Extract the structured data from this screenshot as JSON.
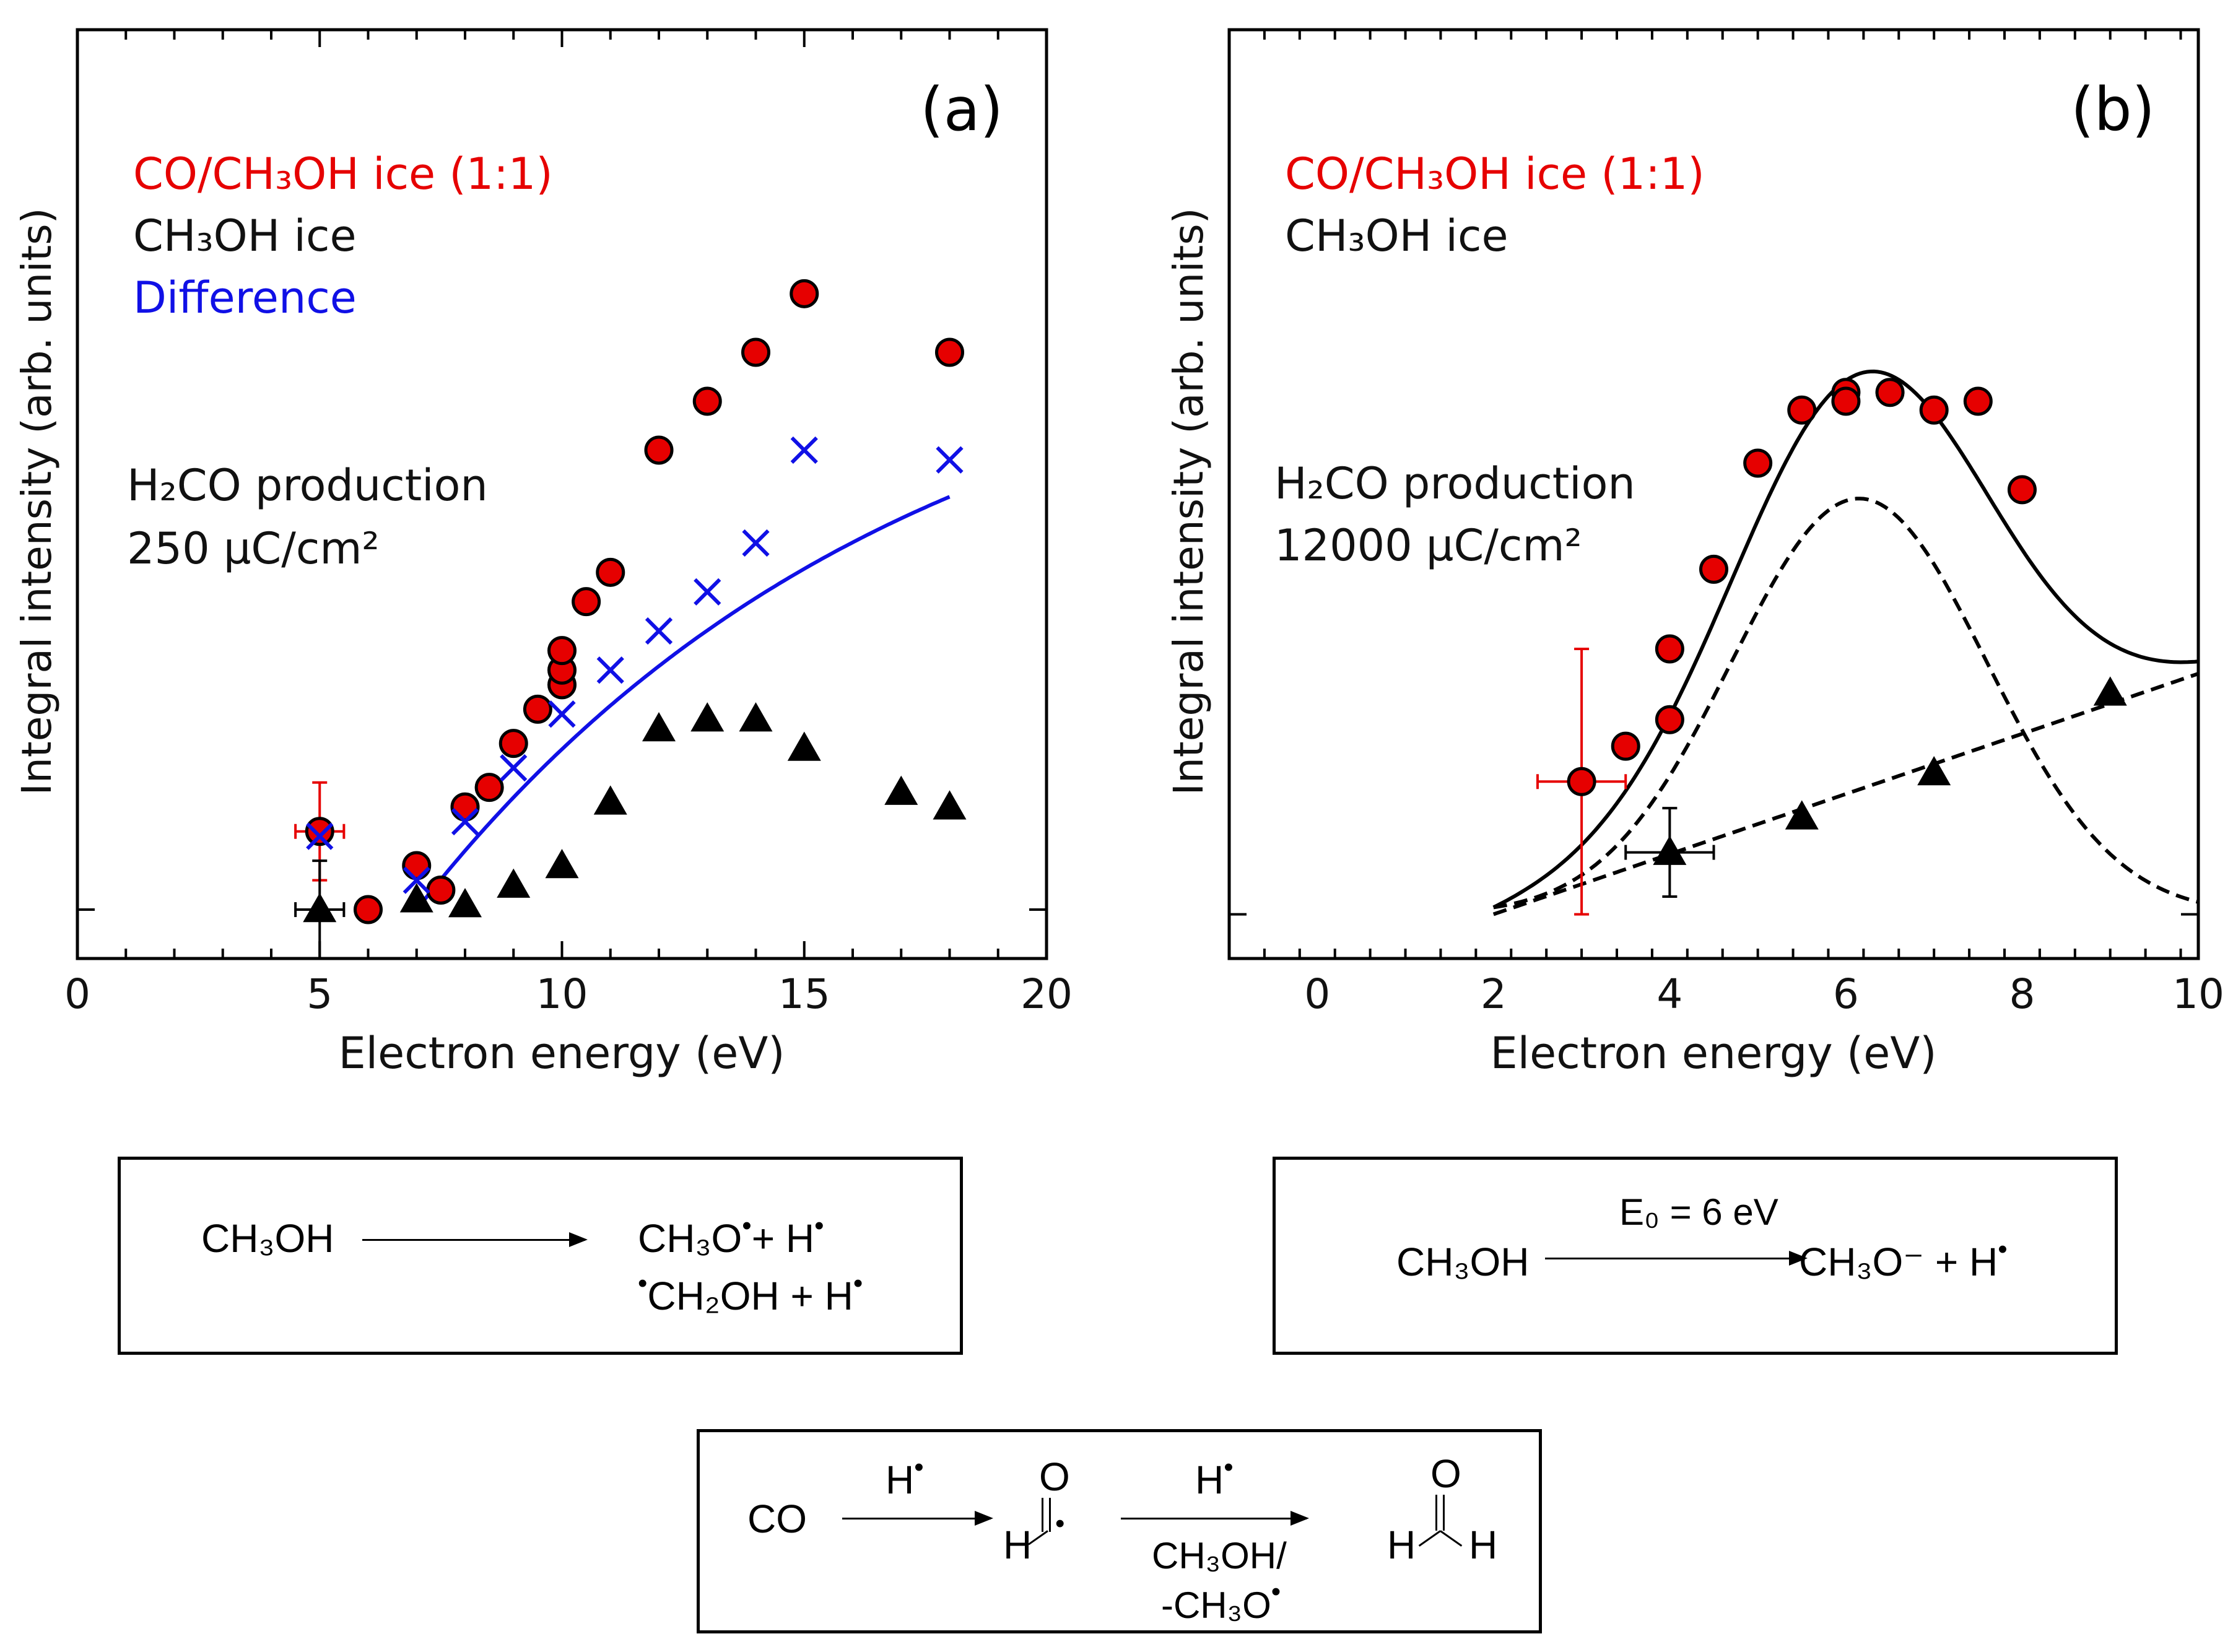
{
  "panels": [
    {
      "id": "a",
      "label": "(a)",
      "ylabel": "Integral intensity (arb. units)",
      "xlabel": "Electron energy (eV)",
      "legend": [
        {
          "text": "CO/CH₃OH ice (1:1)",
          "color": "#e60000"
        },
        {
          "text": "CH₃OH ice",
          "color": "#111111"
        },
        {
          "text": "Difference",
          "color": "#1010e6"
        }
      ],
      "annotation_line1": "H₂CO production",
      "annotation_line2": "250 µC/cm²",
      "xticks": [
        "0",
        "5",
        "10",
        "15",
        "20"
      ]
    },
    {
      "id": "b",
      "label": "(b)",
      "ylabel": "Integral intensity (arb. units)",
      "xlabel": "Electron energy (eV)",
      "legend": [
        {
          "text": "CO/CH₃OH ice (1:1)",
          "color": "#e60000"
        },
        {
          "text": "CH₃OH ice",
          "color": "#111111"
        }
      ],
      "annotation_line1": "H₂CO production",
      "annotation_line2": "12000 µC/cm²",
      "xticks": [
        "0",
        "2",
        "4",
        "6",
        "8",
        "10"
      ]
    }
  ],
  "chart_data": [
    {
      "type": "scatter",
      "title": "(a)",
      "xlabel": "Electron energy (eV)",
      "ylabel": "Integral intensity (arb. units)",
      "xlim": [
        0,
        20
      ],
      "ylim": [
        -0.1,
        1.8
      ],
      "series": [
        {
          "name": "CO/CH3OH ice (1:1)",
          "marker": "circle",
          "color": "#e60000",
          "x": [
            5,
            6,
            7,
            7.5,
            8,
            8.5,
            9,
            9.5,
            10,
            10,
            10,
            10.5,
            11,
            12,
            13,
            14,
            15,
            18
          ],
          "y": [
            0.16,
            0,
            0.09,
            0.04,
            0.21,
            0.25,
            0.34,
            0.41,
            0.46,
            0.49,
            0.53,
            0.63,
            0.69,
            0.94,
            1.04,
            1.14,
            1.26,
            1.14
          ],
          "error": {
            "index": 0,
            "xerr": 0.5,
            "yerr": 0.1
          }
        },
        {
          "name": "CH3OH ice",
          "marker": "triangle",
          "color": "#000000",
          "x": [
            5,
            7,
            8,
            9,
            10,
            11,
            12,
            13,
            14,
            15,
            17,
            18
          ],
          "y": [
            0,
            0.02,
            0.01,
            0.05,
            0.09,
            0.22,
            0.37,
            0.39,
            0.39,
            0.33,
            0.24,
            0.21
          ],
          "error": {
            "index": 0,
            "xerr": 0.5,
            "yerr": 0.1
          }
        },
        {
          "name": "Difference",
          "marker": "x",
          "color": "#1010e6",
          "x": [
            5,
            7,
            8,
            9,
            10,
            11,
            12,
            13,
            14,
            15,
            18
          ],
          "y": [
            0.15,
            0.06,
            0.18,
            0.29,
            0.4,
            0.49,
            0.57,
            0.65,
            0.75,
            0.94,
            0.92
          ]
        },
        {
          "name": "Difference fit",
          "line": "solid",
          "color": "#1010e6",
          "fn": "saturation",
          "x_range": [
            7,
            18
          ],
          "params": {
            "a": 1.266,
            "k": 0.1,
            "x0": 7
          }
        }
      ]
    },
    {
      "type": "scatter",
      "title": "(b)",
      "xlabel": "Electron energy (eV)",
      "ylabel": "Integral intensity (arb. units)",
      "xlim": [
        -1,
        10
      ],
      "ylim": [
        -0.05,
        1.0
      ],
      "series": [
        {
          "name": "CO/CH3OH ice (1:1)",
          "marker": "circle",
          "color": "#e60000",
          "x": [
            3,
            3.5,
            4,
            4,
            4.5,
            5,
            5.5,
            6,
            6,
            6.5,
            7,
            7.5,
            8
          ],
          "y": [
            0.15,
            0.19,
            0.22,
            0.3,
            0.39,
            0.51,
            0.57,
            0.59,
            0.58,
            0.59,
            0.57,
            0.58,
            0.48
          ],
          "error": {
            "index": 0,
            "xerr": 0.5,
            "yerr": 0.15
          }
        },
        {
          "name": "CH3OH ice",
          "marker": "triangle",
          "color": "#000000",
          "x": [
            4,
            5.5,
            7,
            9
          ],
          "y": [
            0.07,
            0.11,
            0.16,
            0.25
          ],
          "error": {
            "index": 0,
            "xerr": 0.5,
            "yerr": 0.05
          }
        },
        {
          "name": "Total fit",
          "line": "solid",
          "color": "#000000",
          "fn": "gauss_plus_linear",
          "x_range": [
            2,
            10
          ],
          "params": {
            "A": 0.47,
            "mu": 6.15,
            "sigma": 1.45,
            "m": 0.034,
            "b": -0.068
          }
        },
        {
          "name": "Gaussian component",
          "line": "dashed",
          "color": "#000000",
          "fn": "gauss",
          "x_range": [
            2,
            10
          ],
          "params": {
            "A": 0.47,
            "mu": 6.15,
            "sigma": 1.45
          }
        },
        {
          "name": "Linear component",
          "line": "dashed",
          "color": "#000000",
          "fn": "linear",
          "x_range": [
            2,
            10
          ],
          "params": {
            "m": 0.034,
            "b": -0.068
          }
        }
      ]
    }
  ],
  "reactions": {
    "r1_reactant": "CH₃OH",
    "r1_product1_a": "CH₃O",
    "r1_product1_b": "+ H",
    "r1_product2_a": "CH₂OH + H",
    "r2_reactant": "CH₃OH",
    "r2_condition": "E₀ = 6 eV",
    "r2_product": "CH₃O⁻ + H",
    "r3_reactant": "CO",
    "r3_reagent1": "H",
    "r3_reagent2": "H",
    "r3_below_1": "CH₃OH/",
    "r3_below_2": "-CH₃O",
    "hco_o": "O",
    "hco_h": "H",
    "h2co_o": "O",
    "h2co_h1": "H",
    "h2co_h2": "H",
    "radical_dot": "•"
  }
}
